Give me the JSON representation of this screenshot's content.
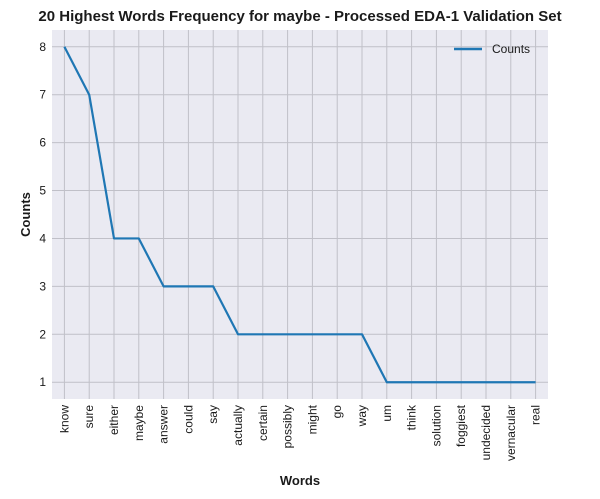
{
  "chart_data": {
    "type": "line",
    "title": "20 Highest Words Frequency for maybe - Processed EDA-1 Validation Set",
    "xlabel": "Words",
    "ylabel": "Counts",
    "categories": [
      "know",
      "sure",
      "either",
      "maybe",
      "answer",
      "could",
      "say",
      "actually",
      "certain",
      "possibly",
      "might",
      "go",
      "way",
      "um",
      "think",
      "solution",
      "foggiest",
      "undecided",
      "vernacular",
      "real"
    ],
    "series": [
      {
        "name": "Counts",
        "values": [
          8,
          7,
          4,
          4,
          3,
          3,
          3,
          2,
          2,
          2,
          2,
          2,
          2,
          1,
          1,
          1,
          1,
          1,
          1,
          1
        ],
        "color": "#1f77b4"
      }
    ],
    "yticks": [
      1,
      2,
      3,
      4,
      5,
      6,
      7,
      8
    ],
    "ylim": [
      0.65,
      8.35
    ],
    "grid": true,
    "legend_position": "top-right",
    "background_color": "#eaeaf2",
    "grid_color": "#c0c0c8"
  }
}
